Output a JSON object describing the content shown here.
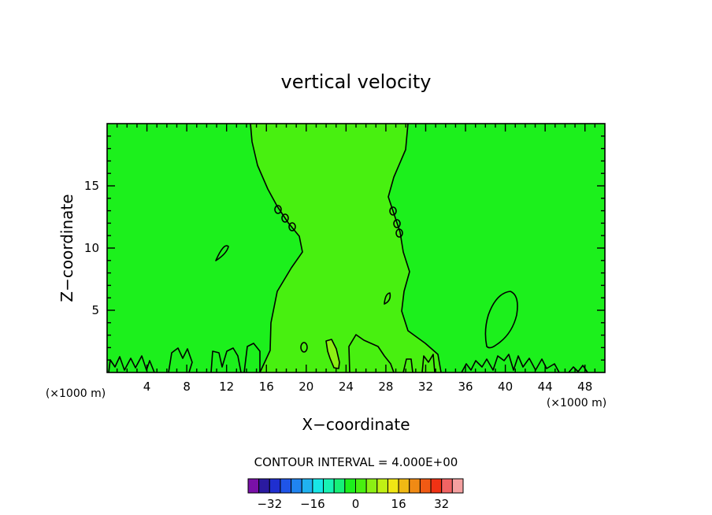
{
  "chart_data": {
    "type": "contour",
    "title": "vertical velocity",
    "xlabel": "X−coordinate",
    "ylabel": "Z−coordinate",
    "x_unit_left": "(×1000 m)",
    "x_unit_right": "(×1000 m)",
    "xlim": [
      0,
      50
    ],
    "ylim": [
      0,
      20
    ],
    "xticks": [
      4,
      8,
      12,
      16,
      20,
      24,
      28,
      32,
      36,
      40,
      44,
      48
    ],
    "yticks": [
      5,
      10,
      15
    ],
    "contour_interval_label": "CONTOUR INTERVAL = 4.000E+00",
    "contour_interval": 4.0,
    "colorbar": {
      "colors": [
        "#7a10a8",
        "#2a1aa0",
        "#1f2fd0",
        "#1f55e8",
        "#2084f0",
        "#20b2f0",
        "#18e6e6",
        "#18f2b4",
        "#16f078",
        "#1cf01c",
        "#48f010",
        "#8cf014",
        "#c0f014",
        "#f0e614",
        "#f0b814",
        "#f08a14",
        "#f05a14",
        "#f03214",
        "#f06464",
        "#f4a0a0"
      ],
      "tick_labels": [
        "−32",
        "−16",
        "0",
        "16",
        "32"
      ],
      "tick_values": [
        -32,
        -16,
        0,
        16,
        32
      ]
    },
    "background_fill": "#1cf01c",
    "core_fill": "#48f010",
    "peak_fill": "#8cf014"
  }
}
